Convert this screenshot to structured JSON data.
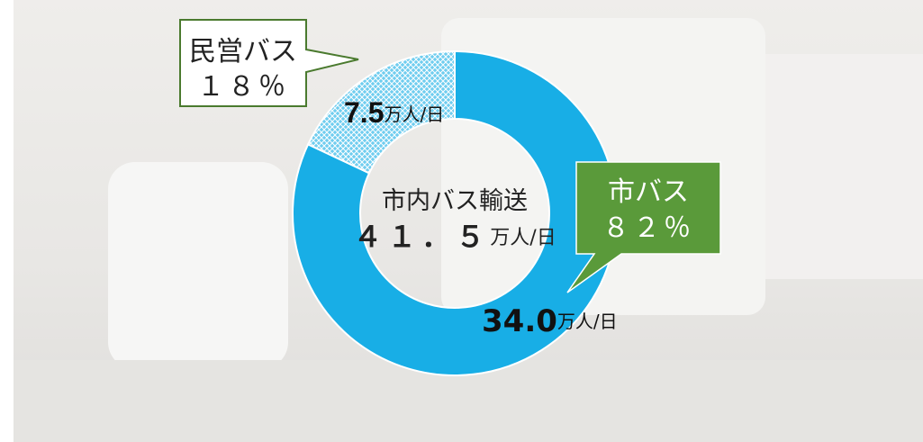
{
  "chart_data": {
    "type": "pie",
    "donut": true,
    "categories": [
      "市バス",
      "民営バス"
    ],
    "values": [
      82,
      18
    ],
    "value_labels": [
      "８２％",
      "１８％"
    ],
    "colors": [
      "#18aee6",
      "#6fcdef"
    ],
    "hatched": [
      false,
      true
    ],
    "ridership": {
      "values": [
        34.0,
        7.5
      ],
      "value_labels": [
        "34.0",
        "7.5"
      ],
      "unit": "万人/日"
    },
    "center_label": "市内バス輸送",
    "total": {
      "value": 41.5,
      "label": "４１．５"
    }
  }
}
